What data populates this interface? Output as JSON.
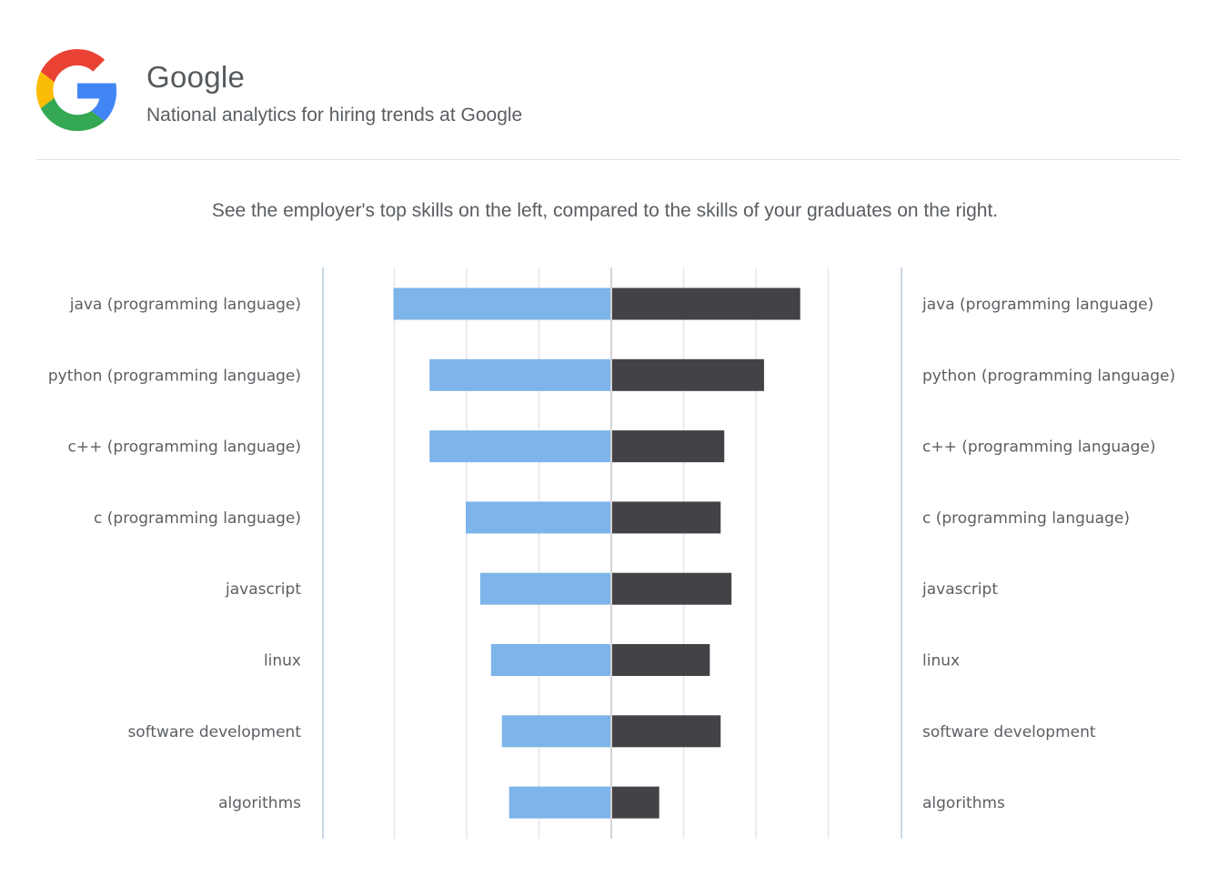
{
  "header": {
    "company": "Google",
    "subtitle": "National analytics for hiring trends at Google",
    "logo_icon": "google-g-logo-icon"
  },
  "instructions": "See the employer's top skills on the left, compared to the skills of your graduates on the right.",
  "colors": {
    "employer": "#7db4ea",
    "graduates": "#434347",
    "gridline": "#e6e6e6",
    "axis": "#c9d7e4",
    "center": "#d4d4d4"
  },
  "chart_data": {
    "type": "bar",
    "orientation": "horizontal-diverging",
    "categories": [
      "java (programming language)",
      "python (programming language)",
      "c++ (programming language)",
      "c (programming language)",
      "javascript",
      "linux",
      "software development",
      "algorithms"
    ],
    "series": [
      {
        "side": "left",
        "values": [
          3.0,
          2.5,
          2.5,
          2.0,
          1.8,
          1.65,
          1.5,
          1.4
        ]
      },
      {
        "side": "right",
        "values": [
          2.6,
          2.1,
          1.55,
          1.5,
          1.65,
          1.35,
          1.5,
          0.65
        ]
      }
    ],
    "xlim": [
      -4,
      4
    ],
    "grid": true,
    "legend": "none"
  }
}
